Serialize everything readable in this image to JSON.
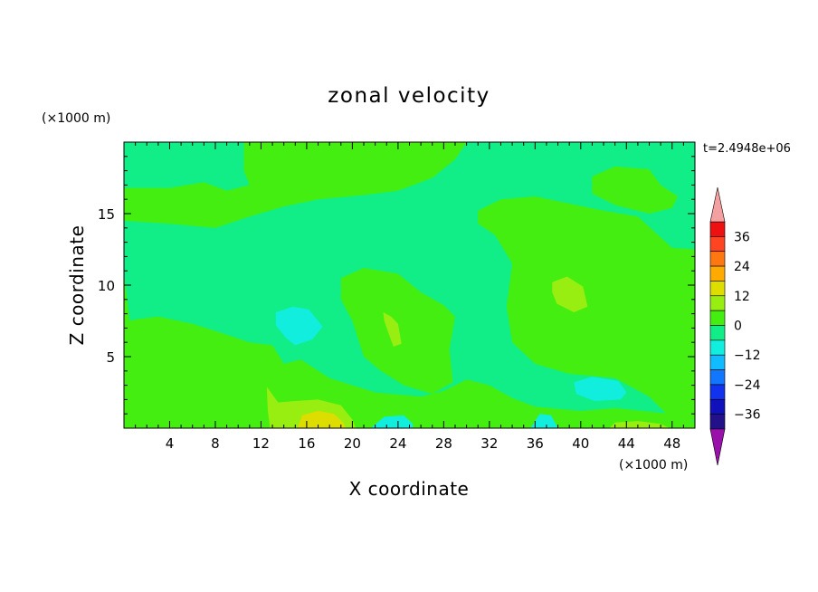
{
  "chart_data": {
    "type": "heatmap",
    "title": "zonal velocity",
    "xlabel": "X coordinate",
    "ylabel": "Z coordinate",
    "x_unit": "(×1000 m)",
    "y_unit": "(×1000 m)",
    "time_label": "t=2.4948e+06",
    "xlim": [
      0,
      50
    ],
    "ylim": [
      0,
      20
    ],
    "x_ticks": [
      4,
      8,
      12,
      16,
      20,
      24,
      28,
      32,
      36,
      40,
      44,
      48
    ],
    "y_ticks": [
      5,
      10,
      15
    ],
    "grid": false,
    "colorbar": {
      "placement": "right",
      "extend": "both",
      "tick_labels": [
        "36",
        "24",
        "12",
        "0",
        "−12",
        "−24",
        "−36"
      ],
      "tick_values": [
        36,
        24,
        12,
        0,
        -12,
        -24,
        -36
      ],
      "levels": [
        {
          "min": 36,
          "max": 42,
          "color": "#ee1111"
        },
        {
          "min": 30,
          "max": 36,
          "color": "#ff4422"
        },
        {
          "min": 24,
          "max": 30,
          "color": "#ff7711"
        },
        {
          "min": 18,
          "max": 24,
          "color": "#ffaa00"
        },
        {
          "min": 12,
          "max": 18,
          "color": "#dddd00"
        },
        {
          "min": 6,
          "max": 12,
          "color": "#99ee11"
        },
        {
          "min": 0,
          "max": 6,
          "color": "#44ee11"
        },
        {
          "min": -6,
          "max": 0,
          "color": "#11ee88"
        },
        {
          "min": -12,
          "max": -6,
          "color": "#11eedd"
        },
        {
          "min": -18,
          "max": -12,
          "color": "#11bbff"
        },
        {
          "min": -24,
          "max": -18,
          "color": "#1177ff"
        },
        {
          "min": -30,
          "max": -24,
          "color": "#1133ee"
        },
        {
          "min": -36,
          "max": -30,
          "color": "#1111bb"
        },
        {
          "min": -42,
          "max": -36,
          "color": "#221188"
        }
      ],
      "over_color": "#f4a0a0",
      "under_color": "#9911aa"
    },
    "background_range": [
      -6,
      0
    ],
    "regions": [
      {
        "label": "upper-left band",
        "range": [
          0,
          6
        ],
        "pts": [
          [
            0,
            16.8
          ],
          [
            4,
            16.8
          ],
          [
            7,
            17.2
          ],
          [
            9,
            16.6
          ],
          [
            11,
            17.0
          ],
          [
            10.5,
            18.0
          ],
          [
            10.5,
            20
          ],
          [
            30,
            20
          ],
          [
            29,
            18.8
          ],
          [
            27,
            17.5
          ],
          [
            24,
            16.6
          ],
          [
            21,
            16.3
          ],
          [
            17,
            16.0
          ],
          [
            14,
            15.5
          ],
          [
            11,
            14.8
          ],
          [
            8,
            14.0
          ],
          [
            4,
            14.3
          ],
          [
            0,
            14.5
          ]
        ]
      },
      {
        "label": "upper-right patch",
        "range": [
          0,
          6
        ],
        "pts": [
          [
            41,
            17.6
          ],
          [
            43,
            18.3
          ],
          [
            46,
            18.1
          ],
          [
            47,
            17.0
          ],
          [
            48.5,
            16.2
          ],
          [
            48,
            15.4
          ],
          [
            46,
            15.0
          ],
          [
            43,
            15.6
          ],
          [
            41,
            16.4
          ]
        ]
      },
      {
        "label": "right big band",
        "range": [
          0,
          6
        ],
        "pts": [
          [
            31,
            15.2
          ],
          [
            33,
            16.0
          ],
          [
            36,
            16.2
          ],
          [
            39,
            15.7
          ],
          [
            42,
            15.2
          ],
          [
            45,
            14.8
          ],
          [
            48,
            12.6
          ],
          [
            50,
            12.5
          ],
          [
            50,
            0.5
          ],
          [
            48,
            0.6
          ],
          [
            46,
            2.2
          ],
          [
            43,
            3.5
          ],
          [
            39,
            3.8
          ],
          [
            36,
            4.5
          ],
          [
            34,
            6.0
          ],
          [
            33.5,
            8.5
          ],
          [
            34,
            11.5
          ],
          [
            32.5,
            13.5
          ],
          [
            31,
            14.3
          ]
        ]
      },
      {
        "label": "left low band",
        "range": [
          0,
          6
        ],
        "pts": [
          [
            0,
            10.8
          ],
          [
            0.5,
            7.5
          ],
          [
            1,
            7.6
          ],
          [
            3,
            7.8
          ],
          [
            6,
            7.3
          ],
          [
            8,
            6.8
          ],
          [
            11,
            6.0
          ],
          [
            13,
            5.8
          ],
          [
            14,
            4.5
          ],
          [
            15.5,
            4.8
          ],
          [
            18,
            3.5
          ],
          [
            22,
            2.5
          ],
          [
            26,
            2.2
          ],
          [
            28,
            2.6
          ],
          [
            30,
            3.4
          ],
          [
            32,
            3.0
          ],
          [
            34,
            2.1
          ],
          [
            36,
            1.5
          ],
          [
            40,
            1.2
          ],
          [
            43,
            1.4
          ],
          [
            48,
            1.0
          ],
          [
            50,
            0.4
          ],
          [
            50,
            0
          ],
          [
            0,
            0
          ]
        ]
      },
      {
        "label": "central column",
        "range": [
          0,
          6
        ],
        "pts": [
          [
            19,
            10.5
          ],
          [
            21,
            11.2
          ],
          [
            24,
            10.8
          ],
          [
            26,
            9.5
          ],
          [
            28,
            8.6
          ],
          [
            29,
            7.8
          ],
          [
            28.5,
            5.5
          ],
          [
            28.8,
            3.2
          ],
          [
            27,
            2.4
          ],
          [
            24.5,
            3.0
          ],
          [
            22.5,
            4.0
          ],
          [
            21,
            5.0
          ],
          [
            20,
            7.5
          ],
          [
            19,
            9.0
          ]
        ]
      },
      {
        "label": "small patch 43x9.5",
        "range": [
          0,
          6
        ],
        "pts": [
          [
            42.8,
            10.0
          ],
          [
            43.8,
            9.7
          ],
          [
            44.1,
            9.3
          ],
          [
            43.2,
            9.0
          ]
        ]
      },
      {
        "label": "cyan patch 14x6",
        "range": [
          -12,
          -6
        ],
        "pts": [
          [
            13.3,
            8.1
          ],
          [
            14.8,
            8.5
          ],
          [
            16.2,
            8.3
          ],
          [
            17.4,
            7.1
          ],
          [
            16.5,
            6.2
          ],
          [
            15,
            5.8
          ],
          [
            14.2,
            6.3
          ],
          [
            13.3,
            7.2
          ]
        ]
      },
      {
        "label": "cyan patch 40x3",
        "range": [
          -12,
          -6
        ],
        "pts": [
          [
            39.4,
            3.2
          ],
          [
            41,
            3.6
          ],
          [
            43.3,
            3.3
          ],
          [
            44,
            2.5
          ],
          [
            43.5,
            2.0
          ],
          [
            41.2,
            1.9
          ],
          [
            39.6,
            2.4
          ]
        ]
      },
      {
        "label": "cyan patch 21x0",
        "range": [
          -12,
          -6
        ],
        "pts": [
          [
            21.6,
            0
          ],
          [
            22.8,
            0.8
          ],
          [
            24.5,
            0.9
          ],
          [
            25.3,
            0.3
          ],
          [
            25.3,
            0
          ]
        ]
      },
      {
        "label": "cyan patch 36x0",
        "range": [
          -12,
          -6
        ],
        "pts": [
          [
            35.6,
            0
          ],
          [
            36.4,
            1.0
          ],
          [
            37.4,
            0.9
          ],
          [
            38,
            0
          ]
        ]
      },
      {
        "label": "light green 39x9",
        "range": [
          6,
          12
        ],
        "pts": [
          [
            37.5,
            10.2
          ],
          [
            38.8,
            10.6
          ],
          [
            40.2,
            9.9
          ],
          [
            40.6,
            8.5
          ],
          [
            39.4,
            8.1
          ],
          [
            37.9,
            8.7
          ],
          [
            37.5,
            9.5
          ]
        ]
      },
      {
        "label": "light green 23x7",
        "range": [
          6,
          12
        ],
        "pts": [
          [
            22.7,
            8.1
          ],
          [
            23.4,
            7.8
          ],
          [
            24.0,
            7.3
          ],
          [
            24.3,
            5.9
          ],
          [
            23.6,
            5.7
          ],
          [
            23.1,
            6.8
          ],
          [
            22.8,
            7.5
          ]
        ]
      },
      {
        "label": "light green 13-20x0",
        "range": [
          6,
          12
        ],
        "pts": [
          [
            12.5,
            2.9
          ],
          [
            13.5,
            1.8
          ],
          [
            15,
            1.9
          ],
          [
            17,
            2.0
          ],
          [
            19,
            1.6
          ],
          [
            20,
            0.6
          ],
          [
            20.3,
            0
          ],
          [
            12.8,
            0
          ],
          [
            12.6,
            1.2
          ]
        ]
      },
      {
        "label": "light green 47x0",
        "range": [
          6,
          12
        ],
        "pts": [
          [
            42.5,
            0
          ],
          [
            43,
            0.4
          ],
          [
            45,
            0.5
          ],
          [
            47,
            0.3
          ],
          [
            47.8,
            0
          ]
        ]
      },
      {
        "label": "yellow 16x0",
        "range": [
          12,
          18
        ],
        "pts": [
          [
            15.2,
            0
          ],
          [
            15.6,
            0.9
          ],
          [
            17,
            1.2
          ],
          [
            18.4,
            1.0
          ],
          [
            19.2,
            0.4
          ],
          [
            19.4,
            0
          ]
        ]
      }
    ]
  }
}
